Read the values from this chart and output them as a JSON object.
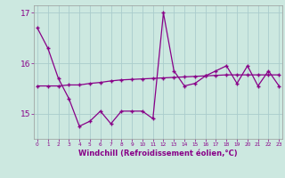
{
  "xlabel": "Windchill (Refroidissement éolien,°C)",
  "bg_color": "#cce8e0",
  "line_color": "#880088",
  "grid_color": "#aacccc",
  "x": [
    0,
    1,
    2,
    3,
    4,
    5,
    6,
    7,
    8,
    9,
    10,
    11,
    12,
    13,
    14,
    15,
    16,
    17,
    18,
    19,
    20,
    21,
    22,
    23
  ],
  "y_actual": [
    16.7,
    16.3,
    15.7,
    15.3,
    14.75,
    14.85,
    15.05,
    14.8,
    15.05,
    15.05,
    15.05,
    14.9,
    17.0,
    15.85,
    15.55,
    15.6,
    15.75,
    15.85,
    15.95,
    15.6,
    15.95,
    15.55,
    15.85,
    15.55
  ],
  "y_trend": [
    15.55,
    15.55,
    15.55,
    15.57,
    15.57,
    15.6,
    15.62,
    15.65,
    15.67,
    15.68,
    15.69,
    15.7,
    15.71,
    15.72,
    15.73,
    15.74,
    15.75,
    15.76,
    15.77,
    15.77,
    15.77,
    15.77,
    15.77,
    15.77
  ],
  "ylim_min": 14.5,
  "ylim_max": 17.15,
  "yticks": [
    15,
    16,
    17
  ],
  "xlim_min": -0.3,
  "xlim_max": 23.3
}
